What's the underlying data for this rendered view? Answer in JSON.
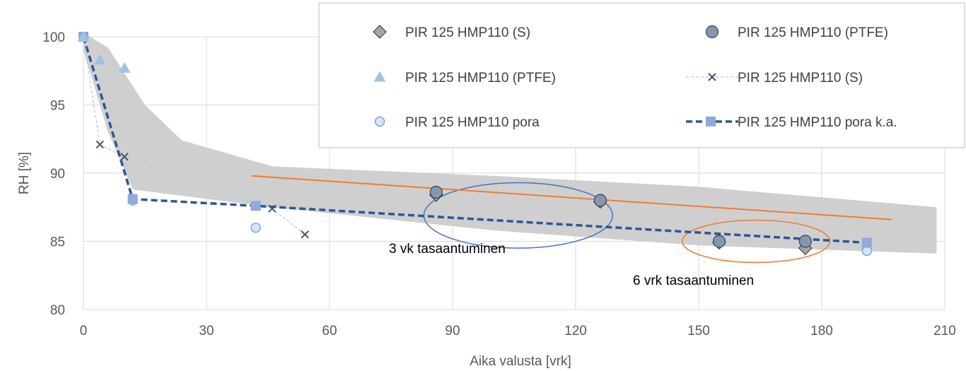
{
  "chart_data": {
    "type": "scatter",
    "title": "",
    "xlabel": "Aika valusta [vrk]",
    "ylabel": "RH [%]",
    "xlim": [
      0,
      210
    ],
    "ylim": [
      80,
      100
    ],
    "xticks": [
      0,
      30,
      60,
      90,
      120,
      150,
      180,
      210
    ],
    "yticks": [
      80,
      85,
      90,
      95,
      100
    ],
    "grid": true,
    "legend_position": "top-right",
    "band": {
      "upper": [
        [
          0,
          100.3
        ],
        [
          6,
          99.2
        ],
        [
          15,
          95
        ],
        [
          24,
          92.4
        ],
        [
          46,
          90.5
        ],
        [
          100,
          89.8
        ],
        [
          150,
          89.0
        ],
        [
          208,
          87.5
        ]
      ],
      "lower": [
        [
          208,
          84.1
        ],
        [
          150,
          84.7
        ],
        [
          100,
          85.8
        ],
        [
          46,
          87.5
        ],
        [
          12,
          88.8
        ],
        [
          6,
          93
        ],
        [
          0,
          99.0
        ]
      ]
    },
    "series": [
      {
        "name": "PIR 125 HMP110 (S)",
        "marker": "diamond",
        "color": "#a6a6a6",
        "line": "none",
        "x": [
          86,
          126,
          155,
          176
        ],
        "y": [
          88.4,
          87.9,
          84.9,
          84.5
        ]
      },
      {
        "name": "PIR 125 HMP110 (PTFE)",
        "marker": "circle",
        "color": "#8497b0",
        "line": "none",
        "x": [
          86,
          126,
          155,
          176
        ],
        "y": [
          88.6,
          88.0,
          85.0,
          85.0
        ]
      },
      {
        "name": "PIR 125 HMP110 (PTFE)",
        "marker": "triangle",
        "color": "#9dc3e6",
        "line": "none",
        "x": [
          0,
          4,
          10
        ],
        "y": [
          100,
          98.3,
          97.7
        ]
      },
      {
        "name": "PIR 125 HMP110 (S)",
        "marker": "x",
        "color": "#44546a",
        "line": "dashed-light",
        "x": [
          0,
          4,
          10,
          46,
          54
        ],
        "y": [
          100,
          92.1,
          91.2,
          87.4,
          85.5
        ]
      },
      {
        "name": "PIR 125 HMP110 pora",
        "marker": "circle-open",
        "color": "#dae3f3",
        "line": "none",
        "x": [
          0,
          12,
          42,
          191
        ],
        "y": [
          100,
          88.0,
          86.0,
          84.3
        ]
      },
      {
        "name": "PIR 125 HMP110 pora k.a.",
        "marker": "square",
        "color": "#8faadc",
        "line": "dashed",
        "x": [
          0,
          12,
          42,
          191
        ],
        "y": [
          100,
          88.1,
          87.6,
          84.9
        ]
      }
    ],
    "trendline": {
      "color": "#ed7d31",
      "x": [
        41,
        197
      ],
      "y": [
        89.8,
        86.6
      ]
    },
    "legend": [
      "PIR 125 HMP110 (S)",
      "PIR 125 HMP110 (PTFE)",
      "PIR 125 HMP110 (PTFE)",
      "PIR 125 HMP110 (S)",
      "PIR 125 HMP110 pora",
      "PIR 125 HMP110 pora k.a."
    ],
    "annotations": [
      {
        "text": "3 vk tasaantuminen",
        "ellipse_color": "#4472c4",
        "ellipse_center": [
          106,
          86.9
        ],
        "ellipse_radius": [
          23,
          2.4
        ]
      },
      {
        "text": "6 vrk tasaantuminen",
        "ellipse_color": "#ed7d31",
        "ellipse_center": [
          164,
          85.0
        ],
        "ellipse_radius": [
          18,
          1.55
        ]
      }
    ]
  }
}
